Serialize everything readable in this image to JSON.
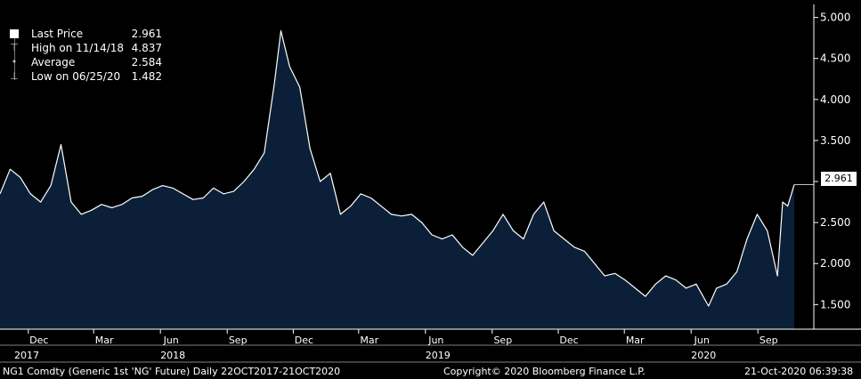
{
  "legend": {
    "items": [
      {
        "label": "Last Price",
        "value": "2.961",
        "icon": "square-icon"
      },
      {
        "label": "High on 11/14/18",
        "value": "4.837",
        "icon": "high-marker-icon"
      },
      {
        "label": "Average",
        "value": "2.584",
        "icon": "average-marker-icon"
      },
      {
        "label": "Low on 06/25/20",
        "value": "1.482",
        "icon": "low-marker-icon"
      }
    ]
  },
  "last_price_tag": "2.961",
  "footer": {
    "ticker": "NG1 Comdty (Generic 1st 'NG' Future)  Daily 22OCT2017-21OCT2020",
    "copyright": "Copyright© 2020 Bloomberg Finance L.P.",
    "timestamp": "21-Oct-2020 06:39:38"
  },
  "colors": {
    "background": "#000000",
    "fill": "#0b2038",
    "line": "#ffffff",
    "axis": "#ffffff"
  },
  "chart_data": {
    "type": "area",
    "series": [
      {
        "name": "Last Price",
        "x": [
          "2017-10-23",
          "2017-11-06",
          "2017-11-20",
          "2017-12-04",
          "2017-12-18",
          "2018-01-01",
          "2018-01-15",
          "2018-01-29",
          "2018-02-12",
          "2018-02-26",
          "2018-03-12",
          "2018-03-26",
          "2018-04-09",
          "2018-04-23",
          "2018-05-07",
          "2018-05-21",
          "2018-06-04",
          "2018-06-18",
          "2018-07-02",
          "2018-07-16",
          "2018-07-30",
          "2018-08-13",
          "2018-08-27",
          "2018-09-10",
          "2018-09-24",
          "2018-10-08",
          "2018-10-22",
          "2018-11-05",
          "2018-11-14",
          "2018-11-26",
          "2018-12-10",
          "2018-12-24",
          "2019-01-07",
          "2019-01-21",
          "2019-02-04",
          "2019-02-18",
          "2019-03-04",
          "2019-03-18",
          "2019-04-01",
          "2019-04-15",
          "2019-04-29",
          "2019-05-13",
          "2019-05-27",
          "2019-06-10",
          "2019-06-24",
          "2019-07-08",
          "2019-07-22",
          "2019-08-05",
          "2019-08-19",
          "2019-09-02",
          "2019-09-16",
          "2019-09-30",
          "2019-10-14",
          "2019-10-28",
          "2019-11-11",
          "2019-11-25",
          "2019-12-09",
          "2019-12-23",
          "2020-01-06",
          "2020-01-20",
          "2020-02-03",
          "2020-02-17",
          "2020-03-02",
          "2020-03-16",
          "2020-03-30",
          "2020-04-13",
          "2020-04-27",
          "2020-05-11",
          "2020-05-25",
          "2020-06-08",
          "2020-06-25",
          "2020-07-06",
          "2020-07-20",
          "2020-08-03",
          "2020-08-17",
          "2020-08-31",
          "2020-09-14",
          "2020-09-28",
          "2020-10-05",
          "2020-10-12",
          "2020-10-21"
        ],
        "values": [
          2.85,
          3.15,
          3.05,
          2.85,
          2.75,
          2.95,
          3.45,
          2.75,
          2.6,
          2.65,
          2.72,
          2.68,
          2.72,
          2.8,
          2.82,
          2.9,
          2.95,
          2.92,
          2.85,
          2.78,
          2.8,
          2.92,
          2.85,
          2.88,
          3.0,
          3.15,
          3.35,
          4.2,
          4.837,
          4.4,
          4.15,
          3.4,
          3.0,
          3.1,
          2.6,
          2.7,
          2.85,
          2.8,
          2.7,
          2.6,
          2.58,
          2.6,
          2.5,
          2.35,
          2.3,
          2.35,
          2.2,
          2.1,
          2.25,
          2.4,
          2.6,
          2.4,
          2.3,
          2.6,
          2.75,
          2.4,
          2.3,
          2.2,
          2.15,
          2.0,
          1.85,
          1.88,
          1.8,
          1.7,
          1.6,
          1.75,
          1.85,
          1.8,
          1.7,
          1.75,
          1.482,
          1.7,
          1.75,
          1.9,
          2.3,
          2.6,
          2.4,
          1.85,
          2.75,
          2.7,
          2.961
        ]
      }
    ],
    "x_ticks": [
      {
        "label": "Dec",
        "x": "2017-12-01"
      },
      {
        "label": "Mar",
        "x": "2018-03-01"
      },
      {
        "label": "Jun",
        "x": "2018-06-01"
      },
      {
        "label": "Sep",
        "x": "2018-09-01"
      },
      {
        "label": "Dec",
        "x": "2018-12-01"
      },
      {
        "label": "Mar",
        "x": "2019-03-01"
      },
      {
        "label": "Jun",
        "x": "2019-06-01"
      },
      {
        "label": "Sep",
        "x": "2019-09-01"
      },
      {
        "label": "Dec",
        "x": "2019-12-01"
      },
      {
        "label": "Mar",
        "x": "2020-03-01"
      },
      {
        "label": "Jun",
        "x": "2020-06-01"
      },
      {
        "label": "Sep",
        "x": "2020-09-01"
      }
    ],
    "year_labels": [
      {
        "label": "2017",
        "x": "2017-10-23"
      },
      {
        "label": "2018",
        "x": "2018-06-01"
      },
      {
        "label": "2019",
        "x": "2019-06-01"
      },
      {
        "label": "2020",
        "x": "2020-06-01"
      }
    ],
    "y_ticks": [
      1.5,
      2.0,
      2.5,
      3.0,
      3.5,
      4.0,
      4.5,
      5.0
    ],
    "y_tick_labels": [
      "1.500",
      "2.000",
      "2.500",
      "",
      "3.500",
      "4.000",
      "4.500",
      "5.000"
    ],
    "ylim": [
      1.2,
      5.05
    ],
    "xlim": [
      "2017-10-23",
      "2020-10-21"
    ],
    "grid": false,
    "legend_position": "top-left"
  }
}
